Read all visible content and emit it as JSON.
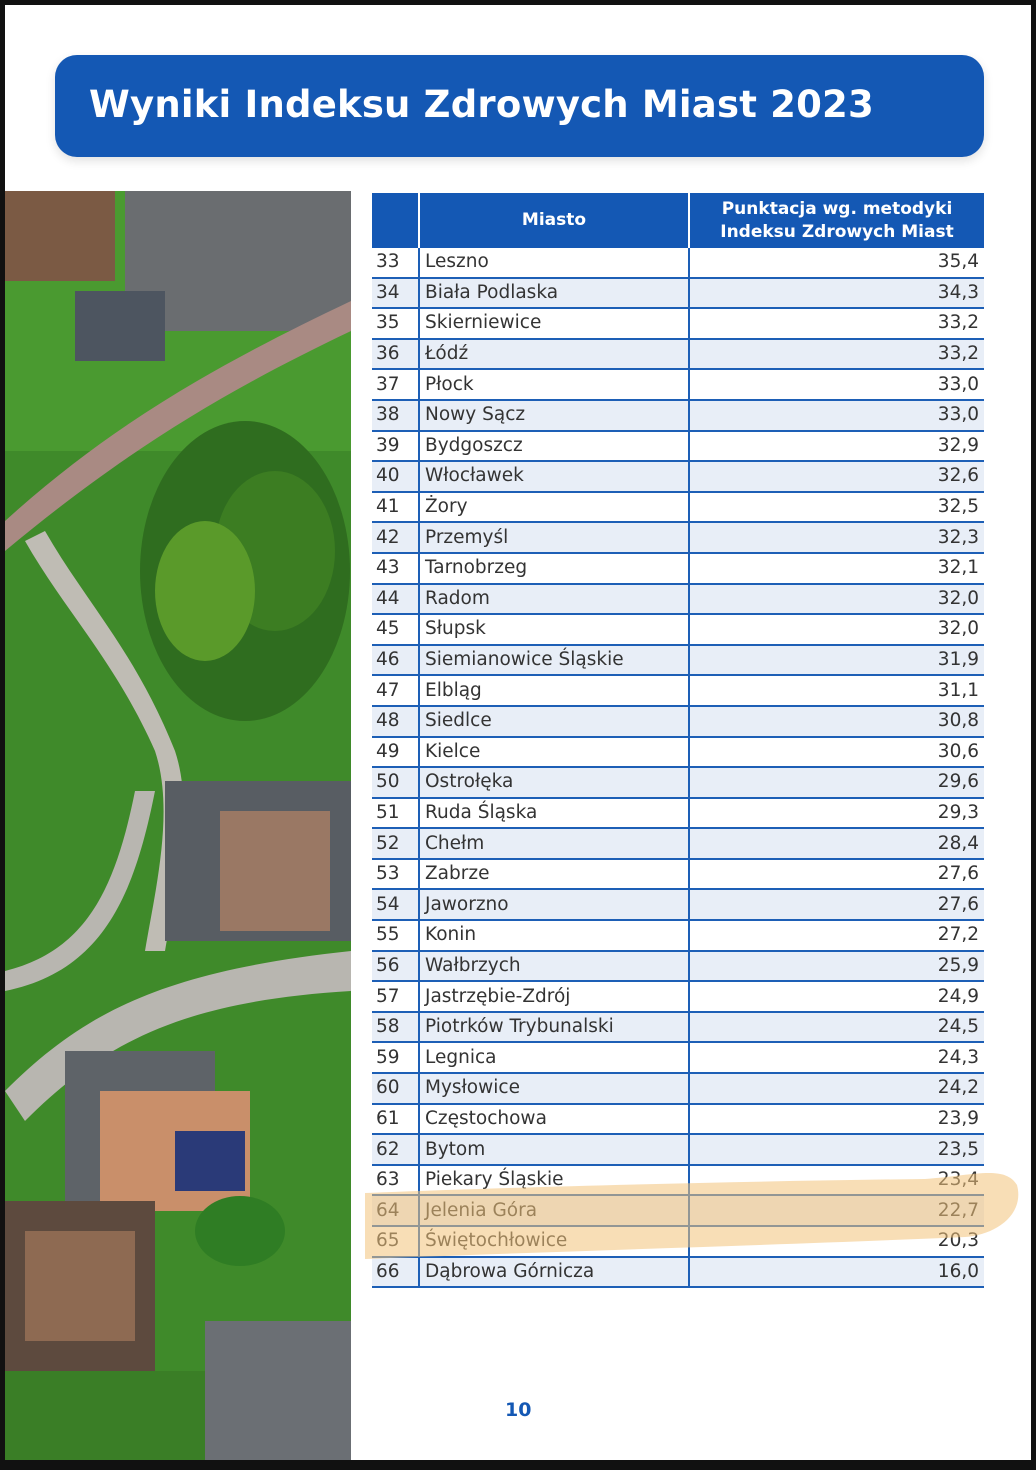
{
  "title": "Wyniki Indeksu Zdrowych Miast 2023",
  "table": {
    "headers": {
      "rank": "",
      "city": "Miasto",
      "score_line1": "Punktacja wg. metodyki",
      "score_line2": "Indeksu Zdrowych Miast"
    },
    "rows": [
      {
        "rank": "33",
        "city": "Leszno",
        "score": "35,4"
      },
      {
        "rank": "34",
        "city": "Biała Podlaska",
        "score": "34,3"
      },
      {
        "rank": "35",
        "city": "Skierniewice",
        "score": "33,2"
      },
      {
        "rank": "36",
        "city": "Łódź",
        "score": "33,2"
      },
      {
        "rank": "37",
        "city": "Płock",
        "score": "33,0"
      },
      {
        "rank": "38",
        "city": "Nowy Sącz",
        "score": "33,0"
      },
      {
        "rank": "39",
        "city": "Bydgoszcz",
        "score": "32,9"
      },
      {
        "rank": "40",
        "city": "Włocławek",
        "score": "32,6"
      },
      {
        "rank": "41",
        "city": "Żory",
        "score": "32,5"
      },
      {
        "rank": "42",
        "city": "Przemyśl",
        "score": "32,3"
      },
      {
        "rank": "43",
        "city": "Tarnobrzeg",
        "score": "32,1"
      },
      {
        "rank": "44",
        "city": "Radom",
        "score": "32,0"
      },
      {
        "rank": "45",
        "city": "Słupsk",
        "score": "32,0"
      },
      {
        "rank": "46",
        "city": "Siemianowice Śląskie",
        "score": "31,9"
      },
      {
        "rank": "47",
        "city": "Elbląg",
        "score": "31,1"
      },
      {
        "rank": "48",
        "city": "Siedlce",
        "score": "30,8"
      },
      {
        "rank": "49",
        "city": "Kielce",
        "score": "30,6"
      },
      {
        "rank": "50",
        "city": "Ostrołęka",
        "score": "29,6"
      },
      {
        "rank": "51",
        "city": "Ruda Śląska",
        "score": "29,3"
      },
      {
        "rank": "52",
        "city": "Chełm",
        "score": "28,4"
      },
      {
        "rank": "53",
        "city": "Zabrze",
        "score": "27,6"
      },
      {
        "rank": "54",
        "city": "Jaworzno",
        "score": "27,6"
      },
      {
        "rank": "55",
        "city": "Konin",
        "score": "27,2"
      },
      {
        "rank": "56",
        "city": "Wałbrzych",
        "score": "25,9"
      },
      {
        "rank": "57",
        "city": "Jastrzębie-Zdrój",
        "score": "24,9"
      },
      {
        "rank": "58",
        "city": "Piotrków Trybunalski",
        "score": "24,5"
      },
      {
        "rank": "59",
        "city": "Legnica",
        "score": "24,3"
      },
      {
        "rank": "60",
        "city": "Mysłowice",
        "score": "24,2"
      },
      {
        "rank": "61",
        "city": "Częstochowa",
        "score": "23,9"
      },
      {
        "rank": "62",
        "city": "Bytom",
        "score": "23,5"
      },
      {
        "rank": "63",
        "city": "Piekary Śląskie",
        "score": "23,4"
      },
      {
        "rank": "64",
        "city": "Jelenia Góra",
        "score": "22,7"
      },
      {
        "rank": "65",
        "city": "Świętochłowice",
        "score": "20,3"
      },
      {
        "rank": "66",
        "city": "Dąbrowa Górnicza",
        "score": "16,0"
      }
    ]
  },
  "page_number": "10",
  "colors": {
    "brand_blue": "#1458b4",
    "row_alt": "#e8eef7",
    "highlight": "#f3c27a"
  },
  "photo": "aerial-suburb-photo"
}
